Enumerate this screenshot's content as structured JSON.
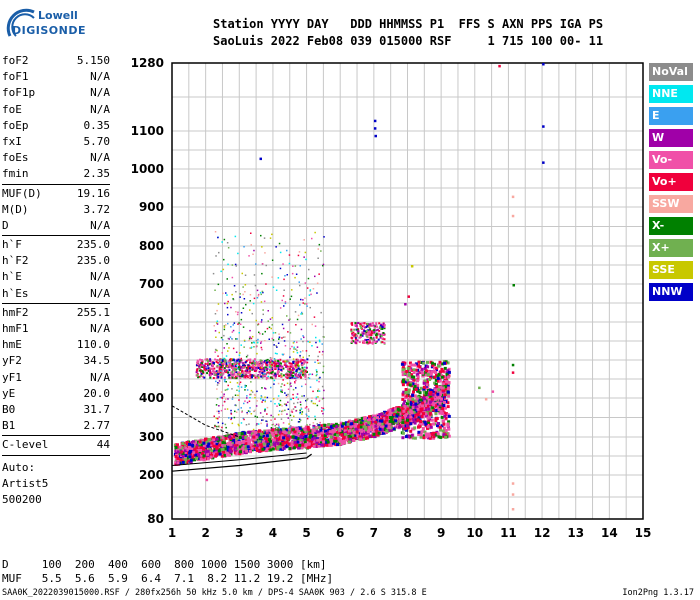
{
  "logo": {
    "line1": "Lowell",
    "line2": "DIGISONDE"
  },
  "header": {
    "labels_line": "Station YYYY DAY   DDD HHMMSS P1  FFS S AXN PPS IGA PS",
    "values_line": "SaoLuis 2022 Feb08 039 015000 RSF     1 715 100 00- 11"
  },
  "parameters": [
    {
      "name": "foF2",
      "value": "5.150"
    },
    {
      "name": "foF1",
      "value": "N/A"
    },
    {
      "name": "foF1p",
      "value": "N/A"
    },
    {
      "name": "foE",
      "value": "N/A"
    },
    {
      "name": "foEp",
      "value": "0.35"
    },
    {
      "name": "fxI",
      "value": "5.70"
    },
    {
      "name": "foEs",
      "value": "N/A"
    },
    {
      "name": "fmin",
      "value": "2.35"
    },
    {
      "name": "MUF(D)",
      "value": "19.16"
    },
    {
      "name": "M(D)",
      "value": "3.72"
    },
    {
      "name": "D",
      "value": "N/A"
    },
    {
      "name": "h`F",
      "value": "235.0"
    },
    {
      "name": "h`F2",
      "value": "235.0"
    },
    {
      "name": "h`E",
      "value": "N/A"
    },
    {
      "name": "h`Es",
      "value": "N/A"
    },
    {
      "name": "hmF2",
      "value": "255.1"
    },
    {
      "name": "hmF1",
      "value": "N/A"
    },
    {
      "name": "hmE",
      "value": "110.0"
    },
    {
      "name": "yF2",
      "value": "34.5"
    },
    {
      "name": "yF1",
      "value": "N/A"
    },
    {
      "name": "yE",
      "value": "20.0"
    },
    {
      "name": "B0",
      "value": "31.7"
    },
    {
      "name": "B1",
      "value": "2.77"
    },
    {
      "name": "C-level",
      "value": "44"
    }
  ],
  "autoscale": {
    "line1": "Auto:",
    "line2": "Artist5",
    "line3": "500200"
  },
  "legend": [
    {
      "label": "NoVal",
      "color": "#8c8c8c"
    },
    {
      "label": "NNE",
      "color": "#00e8f0"
    },
    {
      "label": "E",
      "color": "#3aa0f0"
    },
    {
      "label": "W",
      "color": "#a000a8"
    },
    {
      "label": "Vo-",
      "color": "#f050a8"
    },
    {
      "label": "Vo+",
      "color": "#f0003c"
    },
    {
      "label": "SSW",
      "color": "#f8a8a0"
    },
    {
      "label": "X-",
      "color": "#008000"
    },
    {
      "label": "X+",
      "color": "#70b050"
    },
    {
      "label": "SSE",
      "color": "#c8c800"
    },
    {
      "label": "NNW",
      "color": "#0000c8"
    }
  ],
  "bottom": {
    "d_line": "D     100  200  400  600  800 1000 1500 3000 [km]",
    "muf_line": "MUF   5.5  5.6  5.9  6.4  7.1  8.2 11.2 19.2 [MHz]"
  },
  "footer": {
    "left": "SAA0K_2022039015000.RSF / 280fx256h 50 kHz 5.0 km / DPS-4 SAA0K 903 / 2.6 S 315.8 E",
    "right": "Ion2Png 1.3.17"
  },
  "chart_data": {
    "type": "scatter",
    "x_label": "",
    "y_label": "",
    "xlim": [
      1,
      15
    ],
    "ylim": [
      80,
      1280
    ],
    "y_scale": "nonlinear (ionogram virtual height)",
    "x_ticks": [
      1,
      2,
      3,
      4,
      5,
      6,
      7,
      8,
      9,
      10,
      11,
      12,
      13,
      14,
      15
    ],
    "y_ticks": [
      80,
      200,
      300,
      400,
      500,
      600,
      700,
      800,
      900,
      1000,
      1100,
      1280
    ],
    "grid": true,
    "series": [
      {
        "name": "Vo-",
        "description_color": "#f050a8"
      },
      {
        "name": "Vo+",
        "description_color": "#f0003c"
      }
    ],
    "f_trace": {
      "x": [
        1.0,
        2.0,
        3.0,
        4.0,
        5.0,
        6.0,
        7.0,
        8.0,
        9.0,
        9.2
      ],
      "y": [
        245,
        260,
        275,
        285,
        290,
        300,
        320,
        350,
        400,
        450
      ]
    },
    "profile_line": {
      "x": [
        1.0,
        3.0,
        5.0,
        5.15
      ],
      "y": [
        210,
        225,
        245,
        255
      ]
    }
  }
}
